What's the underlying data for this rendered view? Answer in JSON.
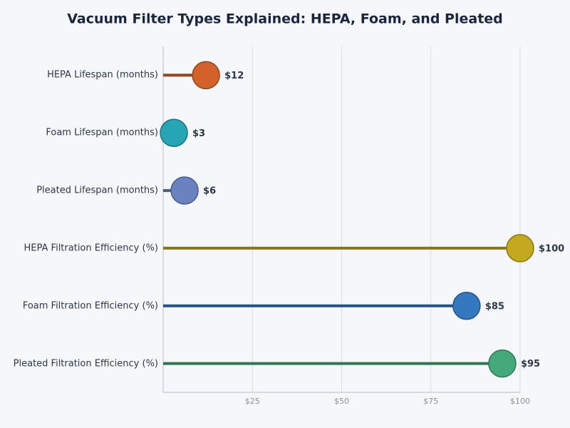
{
  "chart_data": {
    "type": "lollipop",
    "title": "Vacuum Filter Types Explained: HEPA, Foam, and Pleated",
    "categories": [
      "HEPA Lifespan (months)",
      "Foam Lifespan (months)",
      "Pleated Lifespan (months)",
      "HEPA Filtration Efficiency (%)",
      "Foam Filtration Efficiency (%)",
      "Pleated Filtration Efficiency (%)"
    ],
    "values": [
      12,
      3,
      6,
      100,
      85,
      95
    ],
    "value_labels": [
      "$12",
      "$3",
      "$6",
      "$100",
      "$85",
      "$95"
    ],
    "colors": [
      "#d2622a",
      "#26a5b5",
      "#6a82c0",
      "#c4a81e",
      "#3478c0",
      "#45a87a"
    ],
    "xlim": [
      0,
      100
    ],
    "xticks": [
      {
        "value": 25,
        "label": "$25"
      },
      {
        "value": 50,
        "label": "$50"
      },
      {
        "value": 75,
        "label": "$75"
      },
      {
        "value": 100,
        "label": "$100"
      }
    ],
    "grid": true
  }
}
